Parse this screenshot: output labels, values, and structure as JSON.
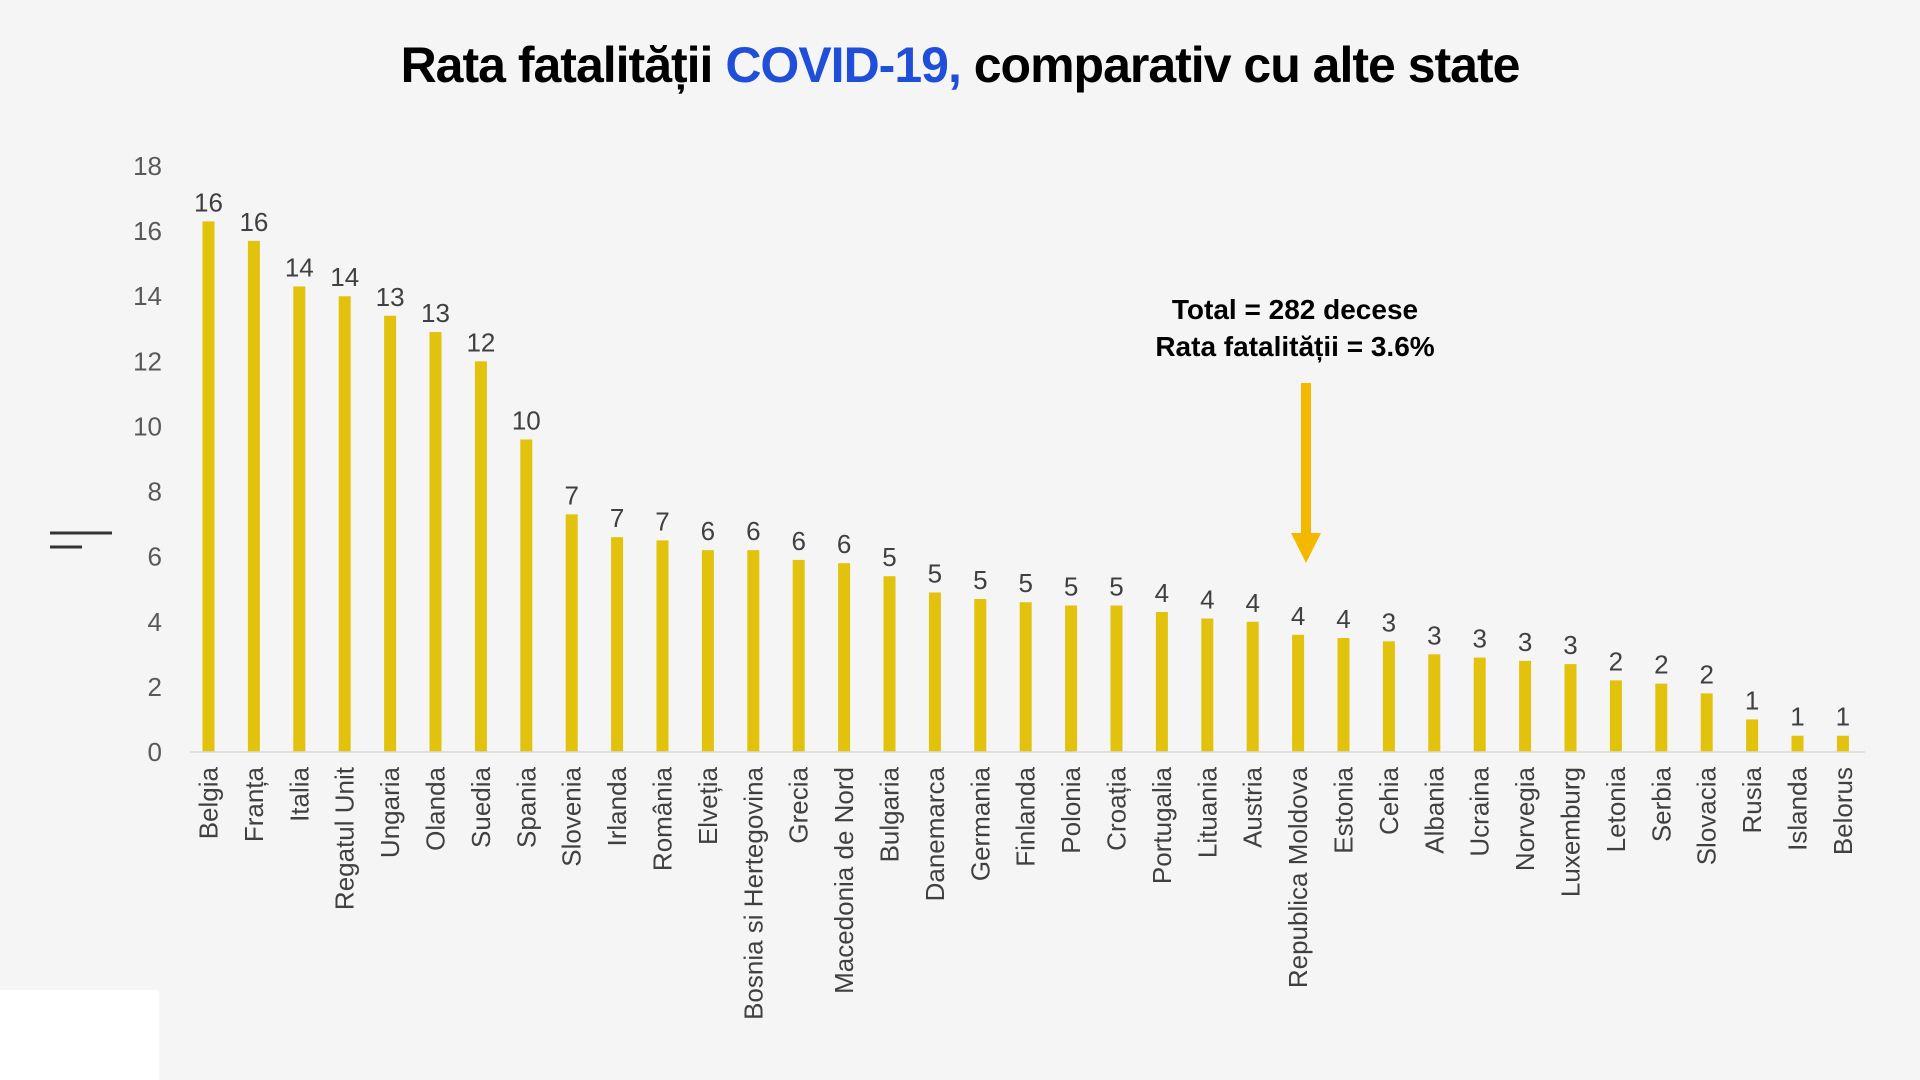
{
  "title": {
    "part1": "Rata fatalității ",
    "highlight": "COVID-19,",
    "part2": " comparativ cu alte state",
    "highlight_color": "#1f4fd8"
  },
  "annotation": {
    "line1": "Total =  282 decese",
    "line2": "Rata fatalității = 3.6%",
    "arrow_target": "Republica Moldova",
    "arrow_color": "#f5b800"
  },
  "chart_data": {
    "type": "bar",
    "categories": [
      "Belgia",
      "Franța",
      "Italia",
      "Regatul Unit",
      "Ungaria",
      "Olanda",
      "Suedia",
      "Spania",
      "Slovenia",
      "Irlanda",
      "România",
      "Elveția",
      "Bosnia si Hertegovina",
      "Grecia",
      "Macedonia de Nord",
      "Bulgaria",
      "Danemarca",
      "Germania",
      "Finlanda",
      "Polonia",
      "Croația",
      "Portugalia",
      "Lituania",
      "Austria",
      "Republica Moldova",
      "Estonia",
      "Cehia",
      "Albania",
      "Ucraina",
      "Norvegia",
      "Luxemburg",
      "Letonia",
      "Serbia",
      "Slovacia",
      "Rusia",
      "Islanda",
      "Belorus"
    ],
    "values": [
      16.3,
      15.7,
      14.3,
      14.0,
      13.4,
      12.9,
      12.0,
      9.6,
      7.3,
      6.6,
      6.5,
      6.2,
      6.2,
      5.9,
      5.8,
      5.4,
      4.9,
      4.7,
      4.6,
      4.5,
      4.5,
      4.3,
      4.1,
      4.0,
      3.6,
      3.5,
      3.4,
      3.0,
      2.9,
      2.8,
      2.7,
      2.2,
      2.1,
      1.8,
      1.0,
      0.5,
      0.5
    ],
    "data_labels": [
      "16",
      "16",
      "14",
      "14",
      "13",
      "13",
      "12",
      "10",
      "7",
      "7",
      "7",
      "6",
      "6",
      "6",
      "6",
      "5",
      "5",
      "5",
      "5",
      "5",
      "5",
      "4",
      "4",
      "4",
      "4",
      "4",
      "3",
      "3",
      "3",
      "3",
      "3",
      "2",
      "2",
      "2",
      "1",
      "1",
      "1"
    ],
    "yticks": [
      "0",
      "2",
      "4",
      "6",
      "8",
      "10",
      "12",
      "14",
      "16",
      "18"
    ],
    "ylim": [
      0,
      18
    ],
    "bar_color": "#e2c20c",
    "title": "",
    "xlabel": "",
    "ylabel": "",
    "grid": false,
    "legend": "none"
  }
}
